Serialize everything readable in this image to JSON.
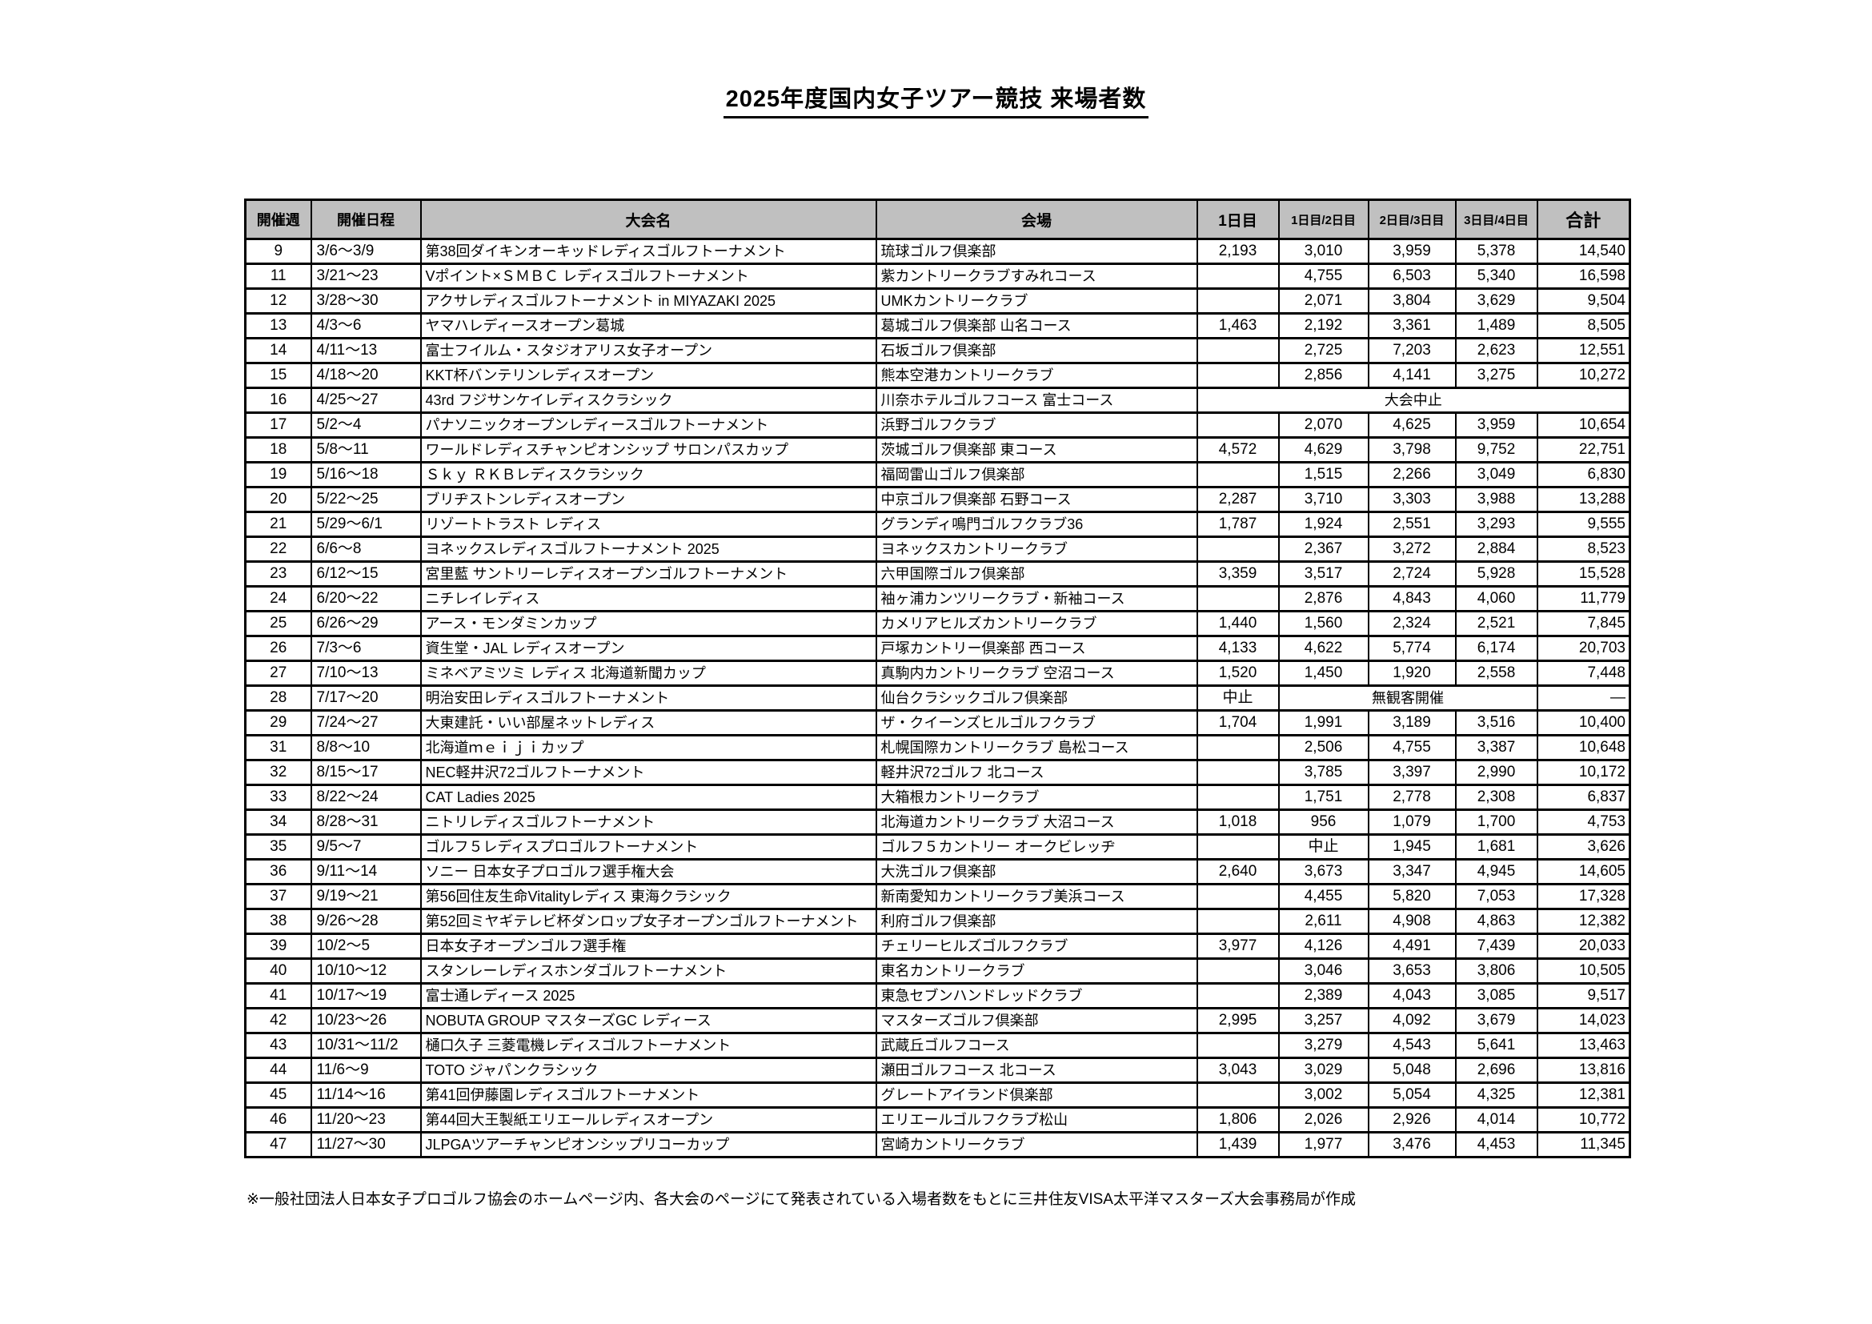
{
  "title": "2025年度国内女子ツアー競技 来場者数",
  "colors": {
    "header_bg": "#c0c0c0",
    "border": "#000000",
    "background": "#ffffff"
  },
  "footnote": "※一般社団法人日本女子プロゴルフ協会のホームページ内、各大会のページにて発表されている入場者数をもとに三井住友VISA太平洋マスターズ大会事務局が作成",
  "table": {
    "headers": [
      "開催週",
      "開催日程",
      "大会名",
      "会場",
      "1日目",
      "1日目/2日目",
      "2日目/3日目",
      "3日目/4日目",
      "合計"
    ],
    "rows": [
      {
        "week": "9",
        "dates": "3/6～3/9",
        "name": "第38回ダイキンオーキッドレディスゴルフトーナメント",
        "venue": "琉球ゴルフ倶楽部",
        "d1": "2,193",
        "d12": "3,010",
        "d23": "3,959",
        "d34": "5,378",
        "total": "14,540"
      },
      {
        "week": "11",
        "dates": "3/21～23",
        "name": "Vポイント×ＳＭＢＣ レディスゴルフトーナメント",
        "venue": "紫カントリークラブすみれコース",
        "d1": "",
        "d12": "4,755",
        "d23": "6,503",
        "d34": "5,340",
        "total": "16,598"
      },
      {
        "week": "12",
        "dates": "3/28～30",
        "name": "アクサレディスゴルフトーナメント in MIYAZAKI 2025",
        "venue": "UMKカントリークラブ",
        "d1": "",
        "d12": "2,071",
        "d23": "3,804",
        "d34": "3,629",
        "total": "9,504"
      },
      {
        "week": "13",
        "dates": "4/3～6",
        "name": "ヤマハレディースオープン葛城",
        "venue": "葛城ゴルフ倶楽部 山名コース",
        "d1": "1,463",
        "d12": "2,192",
        "d23": "3,361",
        "d34": "1,489",
        "total": "8,505"
      },
      {
        "week": "14",
        "dates": "4/11～13",
        "name": "富士フイルム・スタジオアリス女子オープン",
        "venue": "石坂ゴルフ倶楽部",
        "d1": "",
        "d12": "2,725",
        "d23": "7,203",
        "d34": "2,623",
        "total": "12,551"
      },
      {
        "week": "15",
        "dates": "4/18～20",
        "name": "KKT杯バンテリンレディスオープン",
        "venue": "熊本空港カントリークラブ",
        "d1": "",
        "d12": "2,856",
        "d23": "4,141",
        "d34": "3,275",
        "total": "10,272"
      },
      {
        "week": "16",
        "dates": "4/25～27",
        "name": "43rd フジサンケイレディスクラシック",
        "venue": "川奈ホテルゴルフコース 富士コース",
        "type": "canceled",
        "note": "大会中止"
      },
      {
        "week": "17",
        "dates": "5/2～4",
        "name": "パナソニックオープンレディースゴルフトーナメント",
        "venue": "浜野ゴルフクラブ",
        "d1": "",
        "d12": "2,070",
        "d23": "4,625",
        "d34": "3,959",
        "total": "10,654"
      },
      {
        "week": "18",
        "dates": "5/8～11",
        "name": "ワールドレディスチャンピオンシップ サロンパスカップ",
        "venue": "茨城ゴルフ倶楽部 東コース",
        "d1": "4,572",
        "d12": "4,629",
        "d23": "3,798",
        "d34": "9,752",
        "total": "22,751"
      },
      {
        "week": "19",
        "dates": "5/16～18",
        "name": "Ｓｋｙ ＲＫＢレディスクラシック",
        "venue": "福岡雷山ゴルフ倶楽部",
        "d1": "",
        "d12": "1,515",
        "d23": "2,266",
        "d34": "3,049",
        "total": "6,830"
      },
      {
        "week": "20",
        "dates": "5/22～25",
        "name": "ブリヂストンレディスオープン",
        "venue": "中京ゴルフ倶楽部 石野コース",
        "d1": "2,287",
        "d12": "3,710",
        "d23": "3,303",
        "d34": "3,988",
        "total": "13,288"
      },
      {
        "week": "21",
        "dates": "5/29～6/1",
        "name": "リゾートトラスト レディス",
        "venue": "グランディ鳴門ゴルフクラブ36",
        "d1": "1,787",
        "d12": "1,924",
        "d23": "2,551",
        "d34": "3,293",
        "total": "9,555"
      },
      {
        "week": "22",
        "dates": "6/6～8",
        "name": "ヨネックスレディスゴルフトーナメント 2025",
        "venue": "ヨネックスカントリークラブ",
        "d1": "",
        "d12": "2,367",
        "d23": "3,272",
        "d34": "2,884",
        "total": "8,523"
      },
      {
        "week": "23",
        "dates": "6/12～15",
        "name": "宮里藍 サントリーレディスオープンゴルフトーナメント",
        "venue": "六甲国際ゴルフ倶楽部",
        "d1": "3,359",
        "d12": "3,517",
        "d23": "2,724",
        "d34": "5,928",
        "total": "15,528"
      },
      {
        "week": "24",
        "dates": "6/20～22",
        "name": "ニチレイレディス",
        "venue": "袖ヶ浦カンツリークラブ・新袖コース",
        "d1": "",
        "d12": "2,876",
        "d23": "4,843",
        "d34": "4,060",
        "total": "11,779"
      },
      {
        "week": "25",
        "dates": "6/26～29",
        "name": "アース・モンダミンカップ",
        "venue": "カメリアヒルズカントリークラブ",
        "d1": "1,440",
        "d12": "1,560",
        "d23": "2,324",
        "d34": "2,521",
        "total": "7,845"
      },
      {
        "week": "26",
        "dates": "7/3～6",
        "name": "資生堂・JAL レディスオープン",
        "venue": "戸塚カントリー倶楽部 西コース",
        "d1": "4,133",
        "d12": "4,622",
        "d23": "5,774",
        "d34": "6,174",
        "total": "20,703"
      },
      {
        "week": "27",
        "dates": "7/10～13",
        "name": "ミネベアミツミ レディス 北海道新聞カップ",
        "venue": "真駒内カントリークラブ 空沼コース",
        "d1": "1,520",
        "d12": "1,450",
        "d23": "1,920",
        "d34": "2,558",
        "total": "7,448"
      },
      {
        "week": "28",
        "dates": "7/17～20",
        "name": "明治安田レディスゴルフトーナメント",
        "venue": "仙台クラシックゴルフ倶楽部",
        "type": "no_spectators",
        "d1": "中止",
        "note": "無観客開催",
        "total": "―"
      },
      {
        "week": "29",
        "dates": "7/24～27",
        "name": "大東建託・いい部屋ネットレディス",
        "venue": "ザ・クイーンズヒルゴルフクラブ",
        "d1": "1,704",
        "d12": "1,991",
        "d23": "3,189",
        "d34": "3,516",
        "total": "10,400"
      },
      {
        "week": "31",
        "dates": "8/8～10",
        "name": "北海道ｍｅｉｊｉカップ",
        "venue": "札幌国際カントリークラブ 島松コース",
        "d1": "",
        "d12": "2,506",
        "d23": "4,755",
        "d34": "3,387",
        "total": "10,648"
      },
      {
        "week": "32",
        "dates": "8/15～17",
        "name": "NEC軽井沢72ゴルフトーナメント",
        "venue": "軽井沢72ゴルフ 北コース",
        "d1": "",
        "d12": "3,785",
        "d23": "3,397",
        "d34": "2,990",
        "total": "10,172"
      },
      {
        "week": "33",
        "dates": "8/22～24",
        "name": "CAT Ladies 2025",
        "venue": "大箱根カントリークラブ",
        "d1": "",
        "d12": "1,751",
        "d23": "2,778",
        "d34": "2,308",
        "total": "6,837"
      },
      {
        "week": "34",
        "dates": "8/28～31",
        "name": "ニトリレディスゴルフトーナメント",
        "venue": "北海道カントリークラブ 大沼コース",
        "d1": "1,018",
        "d12": "956",
        "d23": "1,079",
        "d34": "1,700",
        "total": "4,753"
      },
      {
        "week": "35",
        "dates": "9/5～7",
        "name": "ゴルフ５レディスプロゴルフトーナメント",
        "venue": "ゴルフ５カントリー オークビレッヂ",
        "d1": "",
        "d12": "中止",
        "d23": "1,945",
        "d34": "1,681",
        "total": "3,626"
      },
      {
        "week": "36",
        "dates": "9/11～14",
        "name": "ソニー 日本女子プロゴルフ選手権大会",
        "venue": "大洗ゴルフ倶楽部",
        "d1": "2,640",
        "d12": "3,673",
        "d23": "3,347",
        "d34": "4,945",
        "total": "14,605"
      },
      {
        "week": "37",
        "dates": "9/19～21",
        "name": "第56回住友生命Vitalityレディス 東海クラシック",
        "venue": "新南愛知カントリークラブ美浜コース",
        "d1": "",
        "d12": "4,455",
        "d23": "5,820",
        "d34": "7,053",
        "total": "17,328"
      },
      {
        "week": "38",
        "dates": "9/26～28",
        "name": "第52回ミヤギテレビ杯ダンロップ女子オープンゴルフトーナメント",
        "venue": "利府ゴルフ倶楽部",
        "d1": "",
        "d12": "2,611",
        "d23": "4,908",
        "d34": "4,863",
        "total": "12,382"
      },
      {
        "week": "39",
        "dates": "10/2～5",
        "name": "日本女子オープンゴルフ選手権",
        "venue": "チェリーヒルズゴルフクラブ",
        "d1": "3,977",
        "d12": "4,126",
        "d23": "4,491",
        "d34": "7,439",
        "total": "20,033"
      },
      {
        "week": "40",
        "dates": "10/10～12",
        "name": "スタンレーレディスホンダゴルフトーナメント",
        "venue": "東名カントリークラブ",
        "d1": "",
        "d12": "3,046",
        "d23": "3,653",
        "d34": "3,806",
        "total": "10,505"
      },
      {
        "week": "41",
        "dates": "10/17～19",
        "name": "富士通レディース 2025",
        "venue": "東急セブンハンドレッドクラブ",
        "d1": "",
        "d12": "2,389",
        "d23": "4,043",
        "d34": "3,085",
        "total": "9,517"
      },
      {
        "week": "42",
        "dates": "10/23～26",
        "name": "NOBUTA GROUP マスターズGC レディース",
        "venue": "マスターズゴルフ倶楽部",
        "d1": "2,995",
        "d12": "3,257",
        "d23": "4,092",
        "d34": "3,679",
        "total": "14,023"
      },
      {
        "week": "43",
        "dates": "10/31～11/2",
        "name": "樋口久子 三菱電機レディスゴルフトーナメント",
        "venue": "武蔵丘ゴルフコース",
        "d1": "",
        "d12": "3,279",
        "d23": "4,543",
        "d34": "5,641",
        "total": "13,463"
      },
      {
        "week": "44",
        "dates": "11/6～9",
        "name": "TOTO ジャパンクラシック",
        "venue": "瀬田ゴルフコース 北コース",
        "d1": "3,043",
        "d12": "3,029",
        "d23": "5,048",
        "d34": "2,696",
        "total": "13,816"
      },
      {
        "week": "45",
        "dates": "11/14～16",
        "name": "第41回伊藤園レディスゴルフトーナメント",
        "venue": "グレートアイランド倶楽部",
        "d1": "",
        "d12": "3,002",
        "d23": "5,054",
        "d34": "4,325",
        "total": "12,381"
      },
      {
        "week": "46",
        "dates": "11/20～23",
        "name": "第44回大王製紙エリエールレディスオープン",
        "venue": "エリエールゴルフクラブ松山",
        "d1": "1,806",
        "d12": "2,026",
        "d23": "2,926",
        "d34": "4,014",
        "total": "10,772"
      },
      {
        "week": "47",
        "dates": "11/27～30",
        "name": "JLPGAツアーチャンピオンシップリコーカップ",
        "venue": "宮崎カントリークラブ",
        "d1": "1,439",
        "d12": "1,977",
        "d23": "3,476",
        "d34": "4,453",
        "total": "11,345"
      }
    ]
  }
}
